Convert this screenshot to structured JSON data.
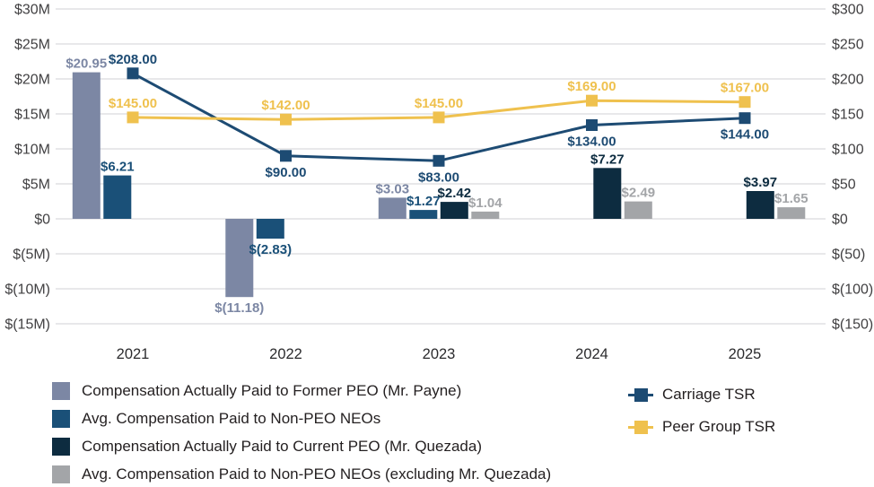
{
  "chart_data": {
    "type": "combo-bar-line",
    "title": "",
    "categories": [
      "2021",
      "2022",
      "2023",
      "2024",
      "2025"
    ],
    "left_axis": {
      "unit": "USD millions",
      "tick_labels": [
        "$30M",
        "$25M",
        "$20M",
        "$15M",
        "$10M",
        "$5M",
        "$0",
        "$(5M)",
        "$(10M)",
        "$(15M)"
      ],
      "tick_values": [
        30,
        25,
        20,
        15,
        10,
        5,
        0,
        -5,
        -10,
        -15
      ],
      "range": [
        -15,
        30
      ]
    },
    "right_axis": {
      "unit": "TSR value of $100 invested",
      "tick_labels": [
        "$300",
        "$250",
        "$200",
        "$150",
        "$100",
        "$50",
        "$0",
        "$(50)",
        "$(100)",
        "$(150)"
      ],
      "tick_values": [
        300,
        250,
        200,
        150,
        100,
        50,
        0,
        -50,
        -100,
        -150
      ],
      "range": [
        -150,
        300
      ]
    },
    "grid": "horizontal",
    "legend_position": "bottom",
    "bar_series": [
      {
        "name": "Compensation Actually Paid to Former PEO (Mr. Payne)",
        "color": "#7C87A4",
        "values": [
          20.95,
          -11.18,
          3.03,
          null,
          null
        ],
        "labels": [
          "$20.95",
          "$(11.18)",
          "$3.03",
          null,
          null
        ]
      },
      {
        "name": "Avg. Compensation Paid to Non-PEO NEOs",
        "color": "#1A5078",
        "values": [
          6.21,
          -2.83,
          1.27,
          null,
          null
        ],
        "labels": [
          "$6.21",
          "$(2.83)",
          "$1.27",
          null,
          null
        ]
      },
      {
        "name": "Compensation Actually Paid to Current PEO (Mr. Quezada)",
        "color": "#0D2C40",
        "values": [
          null,
          null,
          2.42,
          7.27,
          3.97
        ],
        "labels": [
          null,
          null,
          "$2.42",
          "$7.27",
          "$3.97"
        ]
      },
      {
        "name": "Avg. Compensation Paid to Non-PEO NEOs (excluding Mr. Quezada)",
        "color": "#A3A5A8",
        "values": [
          null,
          null,
          1.04,
          2.49,
          1.65
        ],
        "labels": [
          null,
          null,
          "$1.04",
          "$2.49",
          "$1.65"
        ]
      }
    ],
    "line_series": [
      {
        "name": "Carriage TSR",
        "color": "#1D4B73",
        "values": [
          208,
          90,
          83,
          134,
          144
        ],
        "labels": [
          "$208.00",
          "$90.00",
          "$83.00",
          "$134.00",
          "$144.00"
        ],
        "label_positions": [
          "above",
          "below",
          "below",
          "below",
          "below"
        ]
      },
      {
        "name": "Peer Group TSR",
        "color": "#EFC14E",
        "values": [
          145,
          142,
          145,
          169,
          167
        ],
        "labels": [
          "$145.00",
          "$142.00",
          "$145.00",
          "$169.00",
          "$167.00"
        ],
        "label_positions": [
          "above",
          "above",
          "above",
          "above",
          "above"
        ]
      }
    ],
    "colors": {
      "gridline": "#DBDBDD",
      "axis_text": "#414042",
      "legend_text": "#231F20"
    }
  }
}
